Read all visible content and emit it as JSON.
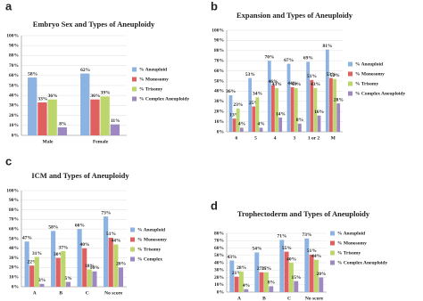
{
  "chart_data": [
    {
      "type": "bar",
      "panel": "a",
      "title": "Embryo Sex and Types of Aneuploidy",
      "categories": [
        "Male",
        "Female"
      ],
      "series": [
        {
          "name": "% Aneuploid",
          "color": "#8db3e2",
          "values": [
            58,
            62
          ],
          "value_labels": [
            "58%",
            "62%"
          ]
        },
        {
          "name": "% Monosomy",
          "color": "#e06060",
          "values": [
            33,
            36
          ],
          "value_labels": [
            "33%",
            "36%"
          ]
        },
        {
          "name": "% Trisomy",
          "color": "#bcd66c",
          "values": [
            36,
            39
          ],
          "value_labels": [
            "36%",
            "39%"
          ]
        },
        {
          "name": "% Complex Aneuploidy",
          "color": "#9d88c2",
          "values": [
            8,
            11
          ],
          "value_labels": [
            "8%",
            "11%"
          ]
        }
      ],
      "ylim": [
        0,
        100
      ],
      "yticks": [
        {
          "value": 0,
          "label": "0%"
        },
        {
          "value": 10,
          "label": "10%"
        },
        {
          "value": 20,
          "label": "20%"
        },
        {
          "value": 30,
          "label": "30%"
        },
        {
          "value": 40,
          "label": "40%"
        },
        {
          "value": 50,
          "label": "50%"
        },
        {
          "value": 60,
          "label": "60%"
        },
        {
          "value": 70,
          "label": "70%"
        },
        {
          "value": 80,
          "label": "80%"
        },
        {
          "value": 90,
          "label": "90%"
        },
        {
          "value": 100,
          "label": "100%"
        }
      ],
      "grid": true
    },
    {
      "type": "bar",
      "panel": "b",
      "title": "Expansion and Types of Aneuploidy",
      "categories": [
        "6",
        "5",
        "4",
        "3",
        "1 or 2",
        "M"
      ],
      "series": [
        {
          "name": "% Aneuploid",
          "color": "#8db3e2",
          "values": [
            36,
            53,
            70,
            67,
            69,
            81
          ],
          "value_labels": [
            "36%",
            "53%",
            "70%",
            "67%",
            "69%",
            "81%"
          ]
        },
        {
          "name": "% Monosomy",
          "color": "#e06060",
          "values": [
            13,
            25,
            46,
            44,
            51,
            53
          ],
          "value_labels": [
            "13%",
            "25%",
            "46%",
            "44%",
            "51%",
            "53%"
          ]
        },
        {
          "name": "% Trisomy",
          "color": "#bcd66c",
          "values": [
            23,
            34,
            43,
            43,
            43,
            52
          ],
          "value_labels": [
            "23%",
            "34%",
            "43%",
            "43%",
            "43%",
            "52%"
          ]
        },
        {
          "name": "% Complex Aneuploidy",
          "color": "#9d88c2",
          "values": [
            4,
            4,
            14,
            8,
            16,
            28
          ],
          "value_labels": [
            "4%",
            "4%",
            "14%",
            "8%",
            "16%",
            "28%"
          ]
        }
      ],
      "ylim": [
        0,
        100
      ],
      "yticks": [
        {
          "value": 0,
          "label": "0%"
        },
        {
          "value": 10,
          "label": "10%"
        },
        {
          "value": 20,
          "label": "20%"
        },
        {
          "value": 30,
          "label": "30%"
        },
        {
          "value": 40,
          "label": "40%"
        },
        {
          "value": 50,
          "label": "50%"
        },
        {
          "value": 60,
          "label": "60%"
        },
        {
          "value": 70,
          "label": "70%"
        },
        {
          "value": 80,
          "label": "80%"
        },
        {
          "value": 90,
          "label": "90%"
        },
        {
          "value": 100,
          "label": "100%"
        }
      ],
      "grid": true
    },
    {
      "type": "bar",
      "panel": "c",
      "title": "ICM and Types of Aneuploidy",
      "categories": [
        "A",
        "B",
        "C",
        "No score"
      ],
      "series": [
        {
          "name": "% Aneuploid",
          "color": "#8db3e2",
          "values": [
            47,
            58,
            60,
            73
          ],
          "value_labels": [
            "47%",
            "58%",
            "60%",
            "73%"
          ]
        },
        {
          "name": "% Monosomy",
          "color": "#e06060",
          "values": [
            22,
            30,
            40,
            51
          ],
          "value_labels": [
            "22%",
            "30%",
            "40%",
            "51%"
          ]
        },
        {
          "name": "% Trisomy",
          "color": "#bcd66c",
          "values": [
            31,
            37,
            18,
            44
          ],
          "value_labels": [
            "31%",
            "37%",
            "18%",
            "44%"
          ]
        },
        {
          "name": "% Complex",
          "color": "#9d88c2",
          "values": [
            3,
            5,
            16,
            20
          ],
          "value_labels": [
            "3%",
            "5%",
            "16%",
            "20%"
          ]
        }
      ],
      "ylim": [
        0,
        100
      ],
      "yticks": [
        {
          "value": 0,
          "label": "0%"
        },
        {
          "value": 10,
          "label": "10%"
        },
        {
          "value": 20,
          "label": "20%"
        },
        {
          "value": 30,
          "label": "30%"
        },
        {
          "value": 40,
          "label": "40%"
        },
        {
          "value": 50,
          "label": "50%"
        },
        {
          "value": 60,
          "label": "60%"
        },
        {
          "value": 70,
          "label": "70%"
        },
        {
          "value": 80,
          "label": "80%"
        },
        {
          "value": 90,
          "label": "90%"
        },
        {
          "value": 100,
          "label": "100%"
        }
      ],
      "grid": true
    },
    {
      "type": "bar",
      "panel": "d",
      "title": "Trophectoderm and Types of Aneuploidy",
      "categories": [
        "A",
        "B",
        "C",
        "No score"
      ],
      "series": [
        {
          "name": "% Aneuploid",
          "color": "#8db3e2",
          "values": [
            43,
            54,
            71,
            73
          ],
          "value_labels": [
            "43%",
            "54%",
            "71%",
            "73%"
          ]
        },
        {
          "name": "% Monosomy",
          "color": "#e06060",
          "values": [
            21,
            27,
            55,
            51
          ],
          "value_labels": [
            "21%",
            "27%",
            "55%",
            "51%"
          ]
        },
        {
          "name": "% Trisomy",
          "color": "#bcd66c",
          "values": [
            28,
            27,
            40,
            44
          ],
          "value_labels": [
            "28%",
            "27%",
            "40%",
            "44%"
          ]
        },
        {
          "name": "% Complex Aneuploidy",
          "color": "#9d88c2",
          "values": [
            4,
            8,
            15,
            20
          ],
          "value_labels": [
            "4%",
            "8%",
            "15%",
            "20%"
          ]
        }
      ],
      "ylim": [
        0,
        80
      ],
      "yticks": [
        {
          "value": 0,
          "label": "0%"
        },
        {
          "value": 10,
          "label": "10%"
        },
        {
          "value": 20,
          "label": "20%"
        },
        {
          "value": 30,
          "label": "30%"
        },
        {
          "value": 40,
          "label": "40%"
        },
        {
          "value": 50,
          "label": "50%"
        },
        {
          "value": 60,
          "label": "60%"
        },
        {
          "value": 70,
          "label": "70%"
        },
        {
          "value": 80,
          "label": "80%"
        }
      ],
      "grid": true
    }
  ]
}
